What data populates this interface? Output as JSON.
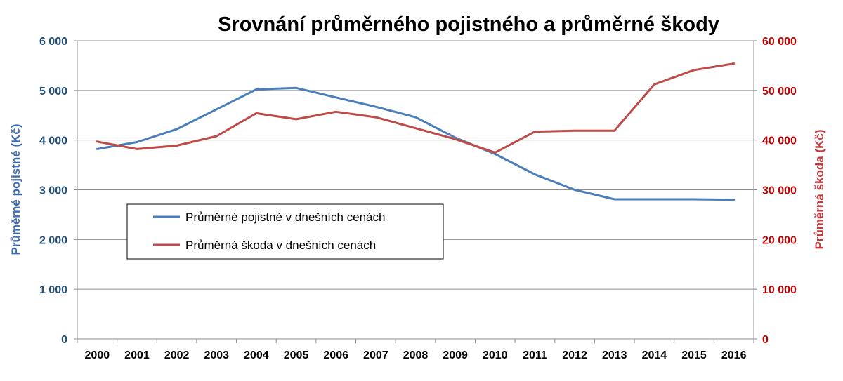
{
  "chart_data": {
    "type": "line",
    "title": "Srovnání průměrného pojistného a průměrné škody",
    "x": [
      "2000",
      "2001",
      "2002",
      "2003",
      "2004",
      "2005",
      "2006",
      "2007",
      "2008",
      "2009",
      "2010",
      "2011",
      "2012",
      "2013",
      "2014",
      "2015",
      "2016"
    ],
    "y_left": {
      "label": "Průměrné pojistné (Kč)",
      "ylim": [
        0,
        6000
      ],
      "ticks": [
        0,
        1000,
        2000,
        3000,
        4000,
        5000,
        6000
      ],
      "tick_labels": [
        "0",
        "1 000",
        "2 000",
        "3 000",
        "4 000",
        "5 000",
        "6 000"
      ],
      "color": "#1f4e79"
    },
    "y_right": {
      "label": "Průměrná škoda (Kč)",
      "ylim": [
        0,
        60000
      ],
      "ticks": [
        0,
        10000,
        20000,
        30000,
        40000,
        50000,
        60000
      ],
      "tick_labels": [
        "0",
        "10 000",
        "20 000",
        "30 000",
        "40 000",
        "50 000",
        "60 000"
      ],
      "color": "#c00000"
    },
    "series": [
      {
        "name": "Průměrné pojistné v dnešních cenách",
        "axis": "left",
        "color": "#4a7ebb",
        "values": [
          3820,
          3960,
          4220,
          4620,
          5020,
          5050,
          4860,
          4670,
          4460,
          4050,
          3720,
          3310,
          3000,
          2810,
          2810,
          2810,
          2800
        ]
      },
      {
        "name": "Průměrná škoda v dnešních cenách",
        "axis": "right",
        "color": "#be4b48",
        "values": [
          39700,
          38200,
          38900,
          40800,
          45400,
          44200,
          45700,
          44600,
          42400,
          40200,
          37500,
          41700,
          41900,
          41900,
          51200,
          54100,
          55400
        ]
      }
    ],
    "grid": true,
    "legend_position": "inside-left-middle"
  }
}
